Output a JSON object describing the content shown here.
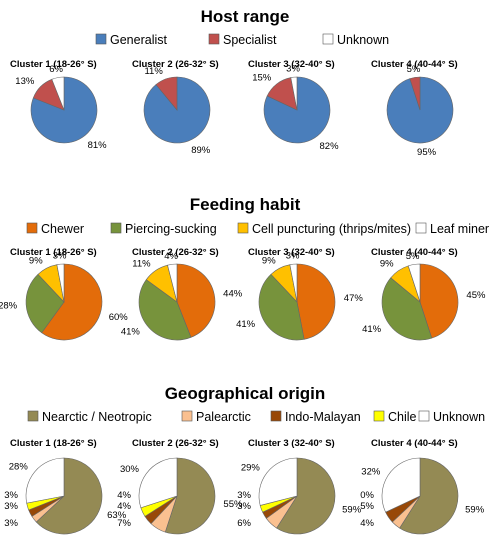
{
  "chart_data": [
    {
      "type": "pie",
      "title": "Host range",
      "legend_placement": "top",
      "legend": [
        {
          "name": "Generalist",
          "color": "#4a7ebb"
        },
        {
          "name": "Specialist",
          "color": "#c0504d"
        },
        {
          "name": "Unknown",
          "color": "#ffffff"
        }
      ],
      "pies": [
        {
          "title": "Cluster 1 (18-26° S)",
          "values": [
            81,
            13,
            6
          ]
        },
        {
          "title": "Cluster 2 (26-32° S)",
          "values": [
            89,
            11,
            0
          ]
        },
        {
          "title": "Cluster 3 (32-40° S)",
          "values": [
            82,
            15,
            3
          ]
        },
        {
          "title": "Cluster 4 (40-44° S)",
          "values": [
            95,
            5,
            0
          ]
        }
      ],
      "labels": [
        {
          "81": "81%",
          "13": "13%",
          "6": "6%"
        },
        {
          "89": "89%",
          "11": "11%"
        },
        {
          "82": "82%",
          "15": "15%",
          "3": "3%"
        },
        {
          "95": "95%",
          "5": "5%"
        }
      ]
    },
    {
      "type": "pie",
      "title": "Feeding habit",
      "legend_placement": "top",
      "legend": [
        {
          "name": "Chewer",
          "color": "#e36c0a"
        },
        {
          "name": "Piercing-sucking",
          "color": "#77933c"
        },
        {
          "name": "Cell puncturing (thrips/mites)",
          "color": "#ffc000"
        },
        {
          "name": "Leaf miner",
          "color": "#ffffff"
        }
      ],
      "pies": [
        {
          "title": "Cluster 1 (18-26° S)",
          "values": [
            60,
            28,
            9,
            3
          ]
        },
        {
          "title": "Cluster 2 (26-32° S)",
          "values": [
            44,
            41,
            11,
            4
          ]
        },
        {
          "title": "Cluster 3 (32-40° S)",
          "values": [
            47,
            41,
            9,
            3
          ]
        },
        {
          "title": "Cluster 4 (40-44° S)",
          "values": [
            45,
            41,
            9,
            5
          ]
        }
      ]
    },
    {
      "type": "pie",
      "title": "Geographical origin",
      "legend_placement": "top",
      "legend": [
        {
          "name": "Nearctic / Neotropic",
          "color": "#948a54"
        },
        {
          "name": "Palearctic",
          "color": "#fac090"
        },
        {
          "name": "Indo-Malayan",
          "color": "#984807"
        },
        {
          "name": "Chile",
          "color": "#ffff00"
        },
        {
          "name": "Unknown",
          "color": "#ffffff"
        }
      ],
      "pies": [
        {
          "title": "Cluster 1 (18-26° S)",
          "values": [
            63,
            3,
            3,
            3,
            28
          ]
        },
        {
          "title": "Cluster 2 (26-32° S)",
          "values": [
            55,
            7,
            4,
            4,
            30
          ]
        },
        {
          "title": "Cluster 3 (32-40° S)",
          "values": [
            59,
            6,
            3,
            3,
            29
          ]
        },
        {
          "title": "Cluster 4 (40-44° S)",
          "values": [
            59,
            4,
            5,
            0,
            32
          ]
        }
      ]
    }
  ]
}
